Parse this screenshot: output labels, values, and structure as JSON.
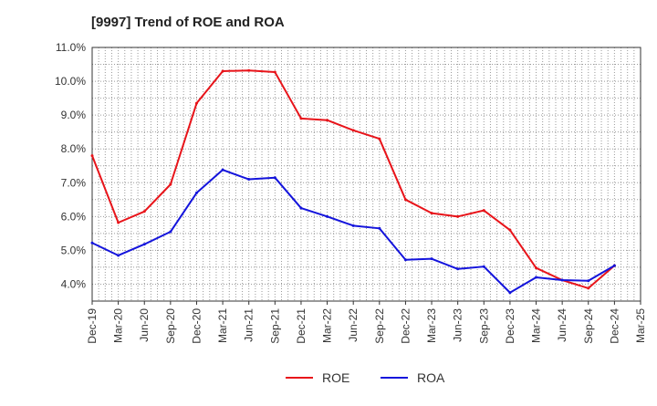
{
  "chart_data": {
    "type": "line",
    "title": "[9997]  Trend of ROE and ROA",
    "x": [
      "Dec-19",
      "Mar-20",
      "Jun-20",
      "Sep-20",
      "Dec-20",
      "Mar-21",
      "Jun-21",
      "Sep-21",
      "Dec-21",
      "Mar-22",
      "Jun-22",
      "Sep-22",
      "Dec-22",
      "Mar-23",
      "Jun-23",
      "Sep-23",
      "Dec-23",
      "Mar-24",
      "Jun-24",
      "Sep-24",
      "Dec-24",
      "Mar-25"
    ],
    "series": [
      {
        "name": "ROE",
        "color": "#e8141a",
        "values": [
          7.8,
          5.82,
          6.15,
          6.95,
          9.35,
          10.3,
          10.32,
          10.27,
          8.9,
          8.85,
          8.55,
          8.3,
          6.5,
          6.1,
          6.0,
          6.18,
          5.6,
          4.48,
          4.12,
          3.88,
          4.55,
          null
        ]
      },
      {
        "name": "ROA",
        "color": "#1414dc",
        "values": [
          5.22,
          4.85,
          5.18,
          5.55,
          6.7,
          7.38,
          7.1,
          7.15,
          6.25,
          6.0,
          5.73,
          5.65,
          4.72,
          4.75,
          4.45,
          4.52,
          3.75,
          4.2,
          4.12,
          4.1,
          4.55,
          null
        ]
      }
    ],
    "y_ticks": [
      "4.0%",
      "5.0%",
      "6.0%",
      "7.0%",
      "8.0%",
      "9.0%",
      "10.0%",
      "11.0%"
    ],
    "ylim": [
      3.5,
      11.0
    ],
    "grid": true,
    "legend_position": "bottom-center"
  }
}
